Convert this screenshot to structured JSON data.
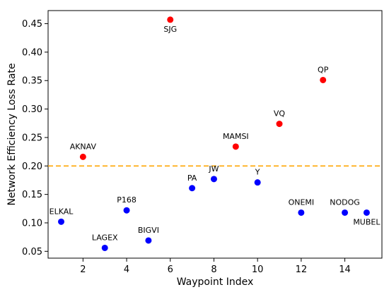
{
  "chart_data": {
    "type": "scatter",
    "title": "",
    "xlabel": "Waypoint Index",
    "ylabel": "Network Efficiency Loss Rate",
    "xlim": [
      0.4,
      15.7
    ],
    "ylim": [
      0.038,
      0.473
    ],
    "xticks": [
      2,
      4,
      6,
      8,
      10,
      12,
      14
    ],
    "yticks": [
      0.05,
      0.1,
      0.15,
      0.2,
      0.25,
      0.3,
      0.35,
      0.4,
      0.45
    ],
    "grid": false,
    "threshold": {
      "y": 0.2,
      "color": "#ffa500",
      "style": "dashed"
    },
    "colors": {
      "above": "#ff0000",
      "below": "#0000ff"
    },
    "points": [
      {
        "x": 1,
        "y": 0.102,
        "label": "ELKAL",
        "label_pos": "above",
        "color": "#0000ff"
      },
      {
        "x": 2,
        "y": 0.216,
        "label": "AKNAV",
        "label_pos": "above",
        "color": "#ff0000"
      },
      {
        "x": 3,
        "y": 0.056,
        "label": "LAGEX",
        "label_pos": "above",
        "color": "#0000ff"
      },
      {
        "x": 4,
        "y": 0.122,
        "label": "P168",
        "label_pos": "above",
        "color": "#0000ff"
      },
      {
        "x": 5,
        "y": 0.069,
        "label": "BIGVI",
        "label_pos": "above",
        "color": "#0000ff"
      },
      {
        "x": 6,
        "y": 0.457,
        "label": "SJG",
        "label_pos": "below",
        "color": "#ff0000"
      },
      {
        "x": 7,
        "y": 0.161,
        "label": "PA",
        "label_pos": "above",
        "color": "#0000ff"
      },
      {
        "x": 8,
        "y": 0.177,
        "label": "JW",
        "label_pos": "above",
        "color": "#0000ff"
      },
      {
        "x": 9,
        "y": 0.234,
        "label": "MAMSI",
        "label_pos": "above",
        "color": "#ff0000"
      },
      {
        "x": 10,
        "y": 0.171,
        "label": "Y",
        "label_pos": "above",
        "color": "#0000ff"
      },
      {
        "x": 11,
        "y": 0.274,
        "label": "VQ",
        "label_pos": "above",
        "color": "#ff0000"
      },
      {
        "x": 12,
        "y": 0.118,
        "label": "ONEMI",
        "label_pos": "above",
        "color": "#0000ff"
      },
      {
        "x": 13,
        "y": 0.351,
        "label": "QP",
        "label_pos": "above",
        "color": "#ff0000"
      },
      {
        "x": 14,
        "y": 0.118,
        "label": "NODOG",
        "label_pos": "above",
        "color": "#0000ff"
      },
      {
        "x": 15,
        "y": 0.118,
        "label": "MUBEL",
        "label_pos": "below",
        "color": "#0000ff"
      }
    ]
  }
}
